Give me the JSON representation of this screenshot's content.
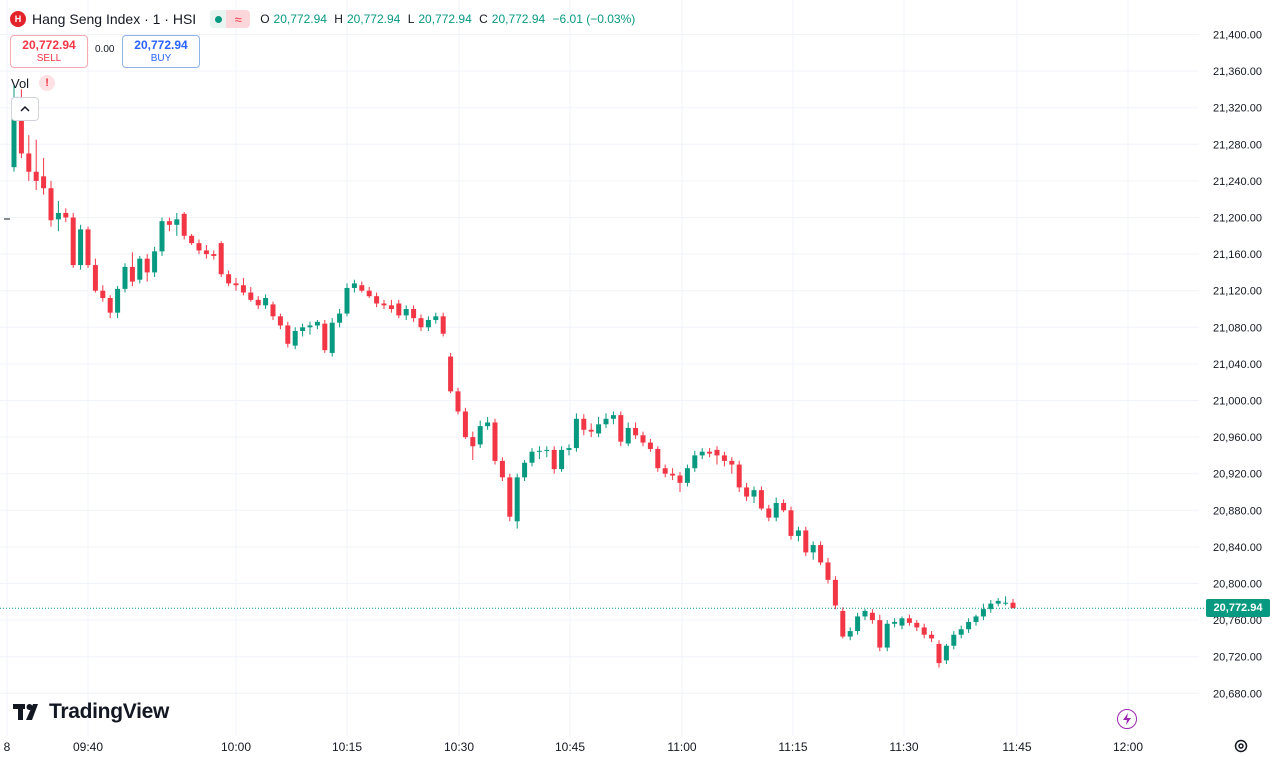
{
  "header": {
    "title": "Hang Seng Index · 1 · HSI",
    "logo_glyph": "H",
    "wave_glyph": "≈",
    "ohlc": {
      "o_label": "O",
      "o_value": "20,772.94",
      "h_label": "H",
      "h_value": "20,772.94",
      "l_label": "L",
      "l_value": "20,772.94",
      "c_label": "C",
      "c_value": "20,772.94",
      "change": "−6.01 (−0.03%)"
    },
    "up_color": "#089981"
  },
  "trade": {
    "sell_price": "20,772.94",
    "sell_label": "SELL",
    "spread": "0.00",
    "buy_price": "20,772.94",
    "buy_label": "BUY"
  },
  "indicators": {
    "vol_label": "Vol",
    "warn_glyph": "!",
    "collapse_glyph": "^"
  },
  "branding": {
    "wordmark": "TradingView"
  },
  "price_scale": {
    "last_price_label": "20,772.94",
    "ticks": [
      "21,400.00",
      "21,360.00",
      "21,320.00",
      "21,280.00",
      "21,240.00",
      "21,200.00",
      "21,160.00",
      "21,120.00",
      "21,080.00",
      "21,040.00",
      "21,000.00",
      "20,960.00",
      "20,920.00",
      "20,880.00",
      "20,840.00",
      "20,800.00",
      "20,760.00",
      "20,720.00",
      "20,680.00"
    ]
  },
  "time_scale": {
    "ticks": [
      "8",
      "09:40",
      "10:00",
      "10:15",
      "10:30",
      "10:45",
      "11:00",
      "11:15",
      "11:30",
      "11:45",
      "12:00"
    ]
  },
  "chart_data": {
    "type": "candlestick",
    "title": "Hang Seng Index · 1 · HSI",
    "ylim": [
      20660,
      21410
    ],
    "up_color": "#089981",
    "down_color": "#f23645",
    "last_price": 20772.94,
    "y_ticks": [
      21400,
      21360,
      21320,
      21280,
      21240,
      21200,
      21160,
      21120,
      21080,
      21040,
      21000,
      20960,
      20920,
      20880,
      20840,
      20800,
      20760,
      20720,
      20680
    ],
    "x_ticks": [
      "8",
      "09:40",
      "10:00",
      "10:15",
      "10:30",
      "10:45",
      "11:00",
      "11:15",
      "11:30",
      "11:45",
      "12:00"
    ],
    "candles": [
      {
        "o": 21255,
        "h": 21345,
        "l": 21250,
        "c": 21330
      },
      {
        "o": 21325,
        "h": 21340,
        "l": 21265,
        "c": 21270
      },
      {
        "o": 21270,
        "h": 21290,
        "l": 21240,
        "c": 21250
      },
      {
        "o": 21250,
        "h": 21285,
        "l": 21230,
        "c": 21240
      },
      {
        "o": 21245,
        "h": 21265,
        "l": 21225,
        "c": 21232
      },
      {
        "o": 21232,
        "h": 21240,
        "l": 21190,
        "c": 21197
      },
      {
        "o": 21198,
        "h": 21218,
        "l": 21185,
        "c": 21205
      },
      {
        "o": 21205,
        "h": 21210,
        "l": 21195,
        "c": 21200
      },
      {
        "o": 21200,
        "h": 21205,
        "l": 21145,
        "c": 21148
      },
      {
        "o": 21148,
        "h": 21192,
        "l": 21143,
        "c": 21187
      },
      {
        "o": 21187,
        "h": 21190,
        "l": 21145,
        "c": 21148
      },
      {
        "o": 21148,
        "h": 21155,
        "l": 21118,
        "c": 21120
      },
      {
        "o": 21120,
        "h": 21126,
        "l": 21108,
        "c": 21112
      },
      {
        "o": 21112,
        "h": 21115,
        "l": 21090,
        "c": 21096
      },
      {
        "o": 21096,
        "h": 21125,
        "l": 21090,
        "c": 21122
      },
      {
        "o": 21122,
        "h": 21150,
        "l": 21118,
        "c": 21146
      },
      {
        "o": 21146,
        "h": 21162,
        "l": 21125,
        "c": 21130
      },
      {
        "o": 21132,
        "h": 21158,
        "l": 21128,
        "c": 21155
      },
      {
        "o": 21155,
        "h": 21160,
        "l": 21130,
        "c": 21140
      },
      {
        "o": 21140,
        "h": 21168,
        "l": 21135,
        "c": 21163
      },
      {
        "o": 21163,
        "h": 21200,
        "l": 21158,
        "c": 21196
      },
      {
        "o": 21196,
        "h": 21200,
        "l": 21185,
        "c": 21192
      },
      {
        "o": 21192,
        "h": 21205,
        "l": 21180,
        "c": 21198
      },
      {
        "o": 21204,
        "h": 21206,
        "l": 21176,
        "c": 21180
      },
      {
        "o": 21180,
        "h": 21182,
        "l": 21170,
        "c": 21172
      },
      {
        "o": 21172,
        "h": 21176,
        "l": 21160,
        "c": 21164
      },
      {
        "o": 21164,
        "h": 21170,
        "l": 21155,
        "c": 21160
      },
      {
        "o": 21160,
        "h": 21164,
        "l": 21154,
        "c": 21158
      },
      {
        "o": 21172,
        "h": 21174,
        "l": 21135,
        "c": 21138
      },
      {
        "o": 21138,
        "h": 21142,
        "l": 21125,
        "c": 21128
      },
      {
        "o": 21128,
        "h": 21134,
        "l": 21120,
        "c": 21126
      },
      {
        "o": 21126,
        "h": 21134,
        "l": 21115,
        "c": 21118
      },
      {
        "o": 21118,
        "h": 21124,
        "l": 21108,
        "c": 21110
      },
      {
        "o": 21110,
        "h": 21114,
        "l": 21100,
        "c": 21104
      },
      {
        "o": 21104,
        "h": 21116,
        "l": 21100,
        "c": 21112
      },
      {
        "o": 21105,
        "h": 21108,
        "l": 21088,
        "c": 21092
      },
      {
        "o": 21092,
        "h": 21095,
        "l": 21078,
        "c": 21082
      },
      {
        "o": 21082,
        "h": 21086,
        "l": 21058,
        "c": 21062
      },
      {
        "o": 21060,
        "h": 21080,
        "l": 21056,
        "c": 21076
      },
      {
        "o": 21076,
        "h": 21084,
        "l": 21070,
        "c": 21080
      },
      {
        "o": 21080,
        "h": 21086,
        "l": 21072,
        "c": 21082
      },
      {
        "o": 21082,
        "h": 21088,
        "l": 21078,
        "c": 21086
      },
      {
        "o": 21084,
        "h": 21088,
        "l": 21052,
        "c": 21055
      },
      {
        "o": 21052,
        "h": 21090,
        "l": 21048,
        "c": 21085
      },
      {
        "o": 21085,
        "h": 21100,
        "l": 21080,
        "c": 21095
      },
      {
        "o": 21095,
        "h": 21128,
        "l": 21092,
        "c": 21123
      },
      {
        "o": 21123,
        "h": 21132,
        "l": 21118,
        "c": 21128
      },
      {
        "o": 21126,
        "h": 21130,
        "l": 21118,
        "c": 21120
      },
      {
        "o": 21120,
        "h": 21124,
        "l": 21112,
        "c": 21114
      },
      {
        "o": 21114,
        "h": 21118,
        "l": 21102,
        "c": 21106
      },
      {
        "o": 21106,
        "h": 21110,
        "l": 21100,
        "c": 21104
      },
      {
        "o": 21104,
        "h": 21110,
        "l": 21096,
        "c": 21100
      },
      {
        "o": 21106,
        "h": 21110,
        "l": 21090,
        "c": 21093
      },
      {
        "o": 21093,
        "h": 21104,
        "l": 21088,
        "c": 21100
      },
      {
        "o": 21100,
        "h": 21104,
        "l": 21086,
        "c": 21090
      },
      {
        "o": 21090,
        "h": 21094,
        "l": 21076,
        "c": 21080
      },
      {
        "o": 21080,
        "h": 21092,
        "l": 21076,
        "c": 21088
      },
      {
        "o": 21088,
        "h": 21096,
        "l": 21084,
        "c": 21092
      },
      {
        "o": 21092,
        "h": 21096,
        "l": 21070,
        "c": 21073
      },
      {
        "o": 21048,
        "h": 21052,
        "l": 21008,
        "c": 21010
      },
      {
        "o": 21010,
        "h": 21014,
        "l": 20985,
        "c": 20988
      },
      {
        "o": 20988,
        "h": 20992,
        "l": 20958,
        "c": 20960
      },
      {
        "o": 20960,
        "h": 20966,
        "l": 20935,
        "c": 20950
      },
      {
        "o": 20952,
        "h": 20978,
        "l": 20948,
        "c": 20972
      },
      {
        "o": 20972,
        "h": 20982,
        "l": 20968,
        "c": 20976
      },
      {
        "o": 20976,
        "h": 20980,
        "l": 20930,
        "c": 20934
      },
      {
        "o": 20934,
        "h": 20938,
        "l": 20912,
        "c": 20916
      },
      {
        "o": 20916,
        "h": 20920,
        "l": 20868,
        "c": 20873
      },
      {
        "o": 20868,
        "h": 20920,
        "l": 20860,
        "c": 20916
      },
      {
        "o": 20916,
        "h": 20935,
        "l": 20912,
        "c": 20932
      },
      {
        "o": 20932,
        "h": 20948,
        "l": 20928,
        "c": 20944
      },
      {
        "o": 20944,
        "h": 20950,
        "l": 20936,
        "c": 20945
      },
      {
        "o": 20945,
        "h": 20950,
        "l": 20938,
        "c": 20946
      },
      {
        "o": 20946,
        "h": 20950,
        "l": 20920,
        "c": 20925
      },
      {
        "o": 20925,
        "h": 20950,
        "l": 20922,
        "c": 20946
      },
      {
        "o": 20946,
        "h": 20952,
        "l": 20940,
        "c": 20948
      },
      {
        "o": 20948,
        "h": 20986,
        "l": 20944,
        "c": 20980
      },
      {
        "o": 20980,
        "h": 20985,
        "l": 20962,
        "c": 20968
      },
      {
        "o": 20968,
        "h": 20975,
        "l": 20960,
        "c": 20966
      },
      {
        "o": 20964,
        "h": 20982,
        "l": 20960,
        "c": 20974
      },
      {
        "o": 20974,
        "h": 20986,
        "l": 20970,
        "c": 20980
      },
      {
        "o": 20980,
        "h": 20988,
        "l": 20974,
        "c": 20984
      },
      {
        "o": 20984,
        "h": 20988,
        "l": 20950,
        "c": 20955
      },
      {
        "o": 20953,
        "h": 20976,
        "l": 20950,
        "c": 20970
      },
      {
        "o": 20970,
        "h": 20976,
        "l": 20958,
        "c": 20962
      },
      {
        "o": 20962,
        "h": 20966,
        "l": 20950,
        "c": 20954
      },
      {
        "o": 20954,
        "h": 20958,
        "l": 20944,
        "c": 20947
      },
      {
        "o": 20947,
        "h": 20950,
        "l": 20922,
        "c": 20926
      },
      {
        "o": 20926,
        "h": 20930,
        "l": 20916,
        "c": 20920
      },
      {
        "o": 20920,
        "h": 20926,
        "l": 20913,
        "c": 20918
      },
      {
        "o": 20918,
        "h": 20922,
        "l": 20900,
        "c": 20910
      },
      {
        "o": 20910,
        "h": 20930,
        "l": 20906,
        "c": 20926
      },
      {
        "o": 20926,
        "h": 20945,
        "l": 20922,
        "c": 20940
      },
      {
        "o": 20940,
        "h": 20948,
        "l": 20936,
        "c": 20944
      },
      {
        "o": 20944,
        "h": 20948,
        "l": 20938,
        "c": 20942
      },
      {
        "o": 20946,
        "h": 20950,
        "l": 20930,
        "c": 20940
      },
      {
        "o": 20940,
        "h": 20944,
        "l": 20928,
        "c": 20934
      },
      {
        "o": 20934,
        "h": 20938,
        "l": 20920,
        "c": 20930
      },
      {
        "o": 20930,
        "h": 20934,
        "l": 20900,
        "c": 20905
      },
      {
        "o": 20905,
        "h": 20910,
        "l": 20890,
        "c": 20895
      },
      {
        "o": 20895,
        "h": 20906,
        "l": 20888,
        "c": 20902
      },
      {
        "o": 20902,
        "h": 20906,
        "l": 20880,
        "c": 20882
      },
      {
        "o": 20882,
        "h": 20886,
        "l": 20868,
        "c": 20872
      },
      {
        "o": 20872,
        "h": 20894,
        "l": 20868,
        "c": 20888
      },
      {
        "o": 20888,
        "h": 20892,
        "l": 20878,
        "c": 20880
      },
      {
        "o": 20880,
        "h": 20884,
        "l": 20848,
        "c": 20852
      },
      {
        "o": 20852,
        "h": 20862,
        "l": 20846,
        "c": 20858
      },
      {
        "o": 20858,
        "h": 20862,
        "l": 20830,
        "c": 20834
      },
      {
        "o": 20834,
        "h": 20846,
        "l": 20826,
        "c": 20842
      },
      {
        "o": 20842,
        "h": 20846,
        "l": 20820,
        "c": 20823
      },
      {
        "o": 20823,
        "h": 20828,
        "l": 20800,
        "c": 20804
      },
      {
        "o": 20804,
        "h": 20808,
        "l": 20772,
        "c": 20776
      },
      {
        "o": 20770,
        "h": 20774,
        "l": 20740,
        "c": 20742
      },
      {
        "o": 20742,
        "h": 20752,
        "l": 20738,
        "c": 20748
      },
      {
        "o": 20748,
        "h": 20768,
        "l": 20744,
        "c": 20764
      },
      {
        "o": 20764,
        "h": 20772,
        "l": 20760,
        "c": 20770
      },
      {
        "o": 20768,
        "h": 20772,
        "l": 20756,
        "c": 20760
      },
      {
        "o": 20760,
        "h": 20766,
        "l": 20726,
        "c": 20730
      },
      {
        "o": 20730,
        "h": 20760,
        "l": 20726,
        "c": 20756
      },
      {
        "o": 20756,
        "h": 20762,
        "l": 20752,
        "c": 20758
      },
      {
        "o": 20754,
        "h": 20764,
        "l": 20750,
        "c": 20762
      },
      {
        "o": 20762,
        "h": 20766,
        "l": 20754,
        "c": 20757
      },
      {
        "o": 20757,
        "h": 20760,
        "l": 20748,
        "c": 20752
      },
      {
        "o": 20752,
        "h": 20756,
        "l": 20740,
        "c": 20744
      },
      {
        "o": 20744,
        "h": 20748,
        "l": 20736,
        "c": 20740
      },
      {
        "o": 20734,
        "h": 20738,
        "l": 20708,
        "c": 20713
      },
      {
        "o": 20716,
        "h": 20734,
        "l": 20712,
        "c": 20732
      },
      {
        "o": 20732,
        "h": 20748,
        "l": 20728,
        "c": 20744
      },
      {
        "o": 20744,
        "h": 20754,
        "l": 20740,
        "c": 20750
      },
      {
        "o": 20750,
        "h": 20762,
        "l": 20746,
        "c": 20758
      },
      {
        "o": 20758,
        "h": 20766,
        "l": 20754,
        "c": 20764
      },
      {
        "o": 20764,
        "h": 20778,
        "l": 20760,
        "c": 20772
      },
      {
        "o": 20772,
        "h": 20782,
        "l": 20768,
        "c": 20778
      },
      {
        "o": 20778,
        "h": 20784,
        "l": 20775,
        "c": 20781
      },
      {
        "o": 20779,
        "h": 20786,
        "l": 20776,
        "c": 20779
      },
      {
        "o": 20779,
        "h": 20783,
        "l": 20773,
        "c": 20773
      }
    ]
  }
}
